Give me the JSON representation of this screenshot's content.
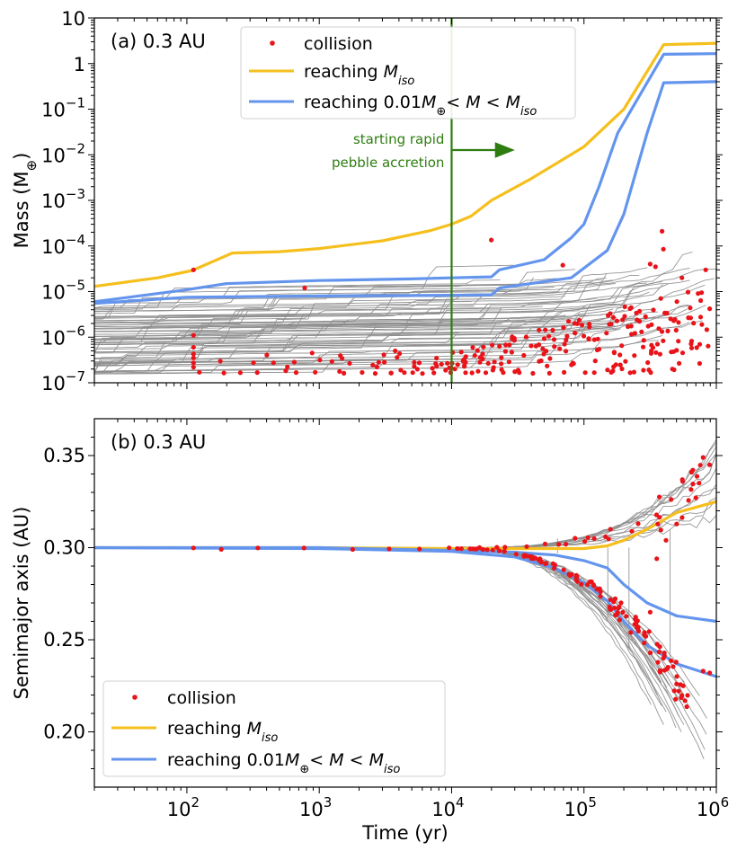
{
  "figure": {
    "xlabel": "Time (yr)",
    "colors": {
      "yellow": "#f5bf1d",
      "blue": "#6495ed",
      "grey": "#8c8c8c",
      "red": "#e8141a",
      "green": "#2e7d10"
    }
  },
  "chart_data": [
    {
      "type": "line",
      "panel": "a",
      "title": "(a) 0.3 AU",
      "ylabel_main": "Mass (M",
      "ylabel_symbol": "⊕",
      "ylabel_close": ")",
      "xscale": "log",
      "yscale": "log",
      "xlim": [
        20,
        1000000
      ],
      "ylim": [
        1e-07,
        10
      ],
      "x_ticks": [
        {
          "value": 100,
          "base": "10",
          "exp": "2"
        },
        {
          "value": 1000,
          "base": "10",
          "exp": "3"
        },
        {
          "value": 10000,
          "base": "10",
          "exp": "4"
        },
        {
          "value": 100000,
          "base": "10",
          "exp": "5"
        },
        {
          "value": 1000000,
          "base": "10",
          "exp": "6"
        }
      ],
      "y_ticks": [
        {
          "value": 1e-07,
          "base": "10",
          "exp": "−7"
        },
        {
          "value": 1e-06,
          "base": "10",
          "exp": "−6"
        },
        {
          "value": 1e-05,
          "base": "10",
          "exp": "−5"
        },
        {
          "value": 0.0001,
          "base": "10",
          "exp": "−4"
        },
        {
          "value": 0.001,
          "base": "10",
          "exp": "−3"
        },
        {
          "value": 0.01,
          "base": "10",
          "exp": "−2"
        },
        {
          "value": 0.1,
          "base": "10",
          "exp": "−1"
        },
        {
          "value": 1,
          "base": "1",
          "exp": ""
        },
        {
          "value": 10,
          "base": "10",
          "exp": ""
        }
      ],
      "vline": {
        "x": 10000,
        "text_line1": "starting rapid",
        "text_line2": "pebble accretion",
        "arrow_to_x": 28000
      },
      "series": [
        {
          "name": "reaching M_iso",
          "color": "#f5bf1d",
          "points": [
            [
              20,
              1.3e-05
            ],
            [
              60,
              2e-05
            ],
            [
              110,
              2.9e-05
            ],
            [
              220,
              7e-05
            ],
            [
              500,
              7.5e-05
            ],
            [
              1000,
              8.8e-05
            ],
            [
              3000,
              0.00013
            ],
            [
              7000,
              0.00022
            ],
            [
              10000,
              0.0003
            ],
            [
              14000,
              0.00045
            ],
            [
              20000,
              0.001
            ],
            [
              40000,
              0.003
            ],
            [
              100000,
              0.015
            ],
            [
              200000,
              0.1
            ],
            [
              400000,
              2.6
            ],
            [
              1000000,
              2.8
            ]
          ]
        },
        {
          "name": "reaching 0.01M⊕< M < M_iso",
          "color": "#6495ed",
          "points": [
            [
              20,
              6e-06
            ],
            [
              100,
              1.1e-05
            ],
            [
              200,
              1.5e-05
            ],
            [
              1000,
              1.75e-05
            ],
            [
              5000,
              1.9e-05
            ],
            [
              10000,
              2e-05
            ],
            [
              20000,
              2.1e-05
            ],
            [
              23000,
              3e-05
            ],
            [
              50000,
              5e-05
            ],
            [
              80000,
              0.00015
            ],
            [
              100000,
              0.0003
            ],
            [
              130000,
              0.002
            ],
            [
              180000,
              0.03
            ],
            [
              400000,
              1.6
            ],
            [
              1000000,
              1.65
            ]
          ]
        },
        {
          "name": "reaching 0.01M⊕< M < M_iso (2)",
          "color": "#6495ed",
          "points": [
            [
              20,
              5.5e-06
            ],
            [
              100,
              7.5e-06
            ],
            [
              1000,
              8e-06
            ],
            [
              10000,
              8.3e-06
            ],
            [
              20000,
              8.5e-06
            ],
            [
              23000,
              1.2e-05
            ],
            [
              80000,
              2e-05
            ],
            [
              150000,
              8e-05
            ],
            [
              200000,
              0.0005
            ],
            [
              300000,
              0.03
            ],
            [
              400000,
              0.38
            ],
            [
              1000000,
              0.4
            ]
          ]
        }
      ],
      "legend": {
        "location": "upper center",
        "entries": [
          {
            "type": "marker",
            "color": "#e8141a",
            "text": "collision"
          },
          {
            "type": "line",
            "color": "#f5bf1d",
            "text_plain": "reaching ",
            "text_math": "M",
            "text_sub": "iso"
          },
          {
            "type": "line",
            "color": "#6495ed",
            "text_plain": "reaching 0.01",
            "text_math": "M",
            "text_sub": "⊕",
            "text_rest": "< ",
            "text_math2": "M",
            "text_rest2": " < ",
            "text_math3": "M",
            "text_sub3": "iso"
          }
        ]
      },
      "collision_markers": "scattered red dots along grey embryo tracks, concentrated between 1e-7 and 1e-5 M⊕, dense after 1e4 yr"
    },
    {
      "type": "line",
      "panel": "b",
      "title": "(b) 0.3 AU",
      "ylabel": "Semimajor axis (AU)",
      "xscale": "log",
      "yscale": "linear",
      "xlim": [
        20,
        1000000
      ],
      "ylim": [
        0.17,
        0.37
      ],
      "x_ticks": [
        {
          "value": 100,
          "base": "10",
          "exp": "2"
        },
        {
          "value": 1000,
          "base": "10",
          "exp": "3"
        },
        {
          "value": 10000,
          "base": "10",
          "exp": "4"
        },
        {
          "value": 100000,
          "base": "10",
          "exp": "5"
        },
        {
          "value": 1000000,
          "base": "10",
          "exp": "6"
        }
      ],
      "y_ticks": [
        {
          "value": 0.2,
          "label": "0.20"
        },
        {
          "value": 0.25,
          "label": "0.25"
        },
        {
          "value": 0.3,
          "label": "0.30"
        },
        {
          "value": 0.35,
          "label": "0.35"
        }
      ],
      "series": [
        {
          "name": "reaching M_iso",
          "color": "#f5bf1d",
          "points": [
            [
              20,
              0.3
            ],
            [
              1000,
              0.3
            ],
            [
              10000,
              0.2995
            ],
            [
              50000,
              0.2995
            ],
            [
              100000,
              0.2995
            ],
            [
              150000,
              0.301
            ],
            [
              200000,
              0.304
            ],
            [
              300000,
              0.31
            ],
            [
              500000,
              0.319
            ],
            [
              1000000,
              0.325
            ]
          ]
        },
        {
          "name": "reaching 0.01M⊕< M < M_iso",
          "color": "#6495ed",
          "points": [
            [
              20,
              0.3
            ],
            [
              1000,
              0.3
            ],
            [
              10000,
              0.2985
            ],
            [
              30000,
              0.2975
            ],
            [
              60000,
              0.296
            ],
            [
              100000,
              0.293
            ],
            [
              150000,
              0.289
            ],
            [
              200000,
              0.28
            ],
            [
              300000,
              0.27
            ],
            [
              500000,
              0.263
            ],
            [
              1000000,
              0.26
            ]
          ]
        },
        {
          "name": "reaching 0.01M⊕< M < M_iso (2)",
          "color": "#6495ed",
          "points": [
            [
              20,
              0.3
            ],
            [
              1000,
              0.2995
            ],
            [
              10000,
              0.298
            ],
            [
              30000,
              0.295
            ],
            [
              60000,
              0.289
            ],
            [
              100000,
              0.281
            ],
            [
              150000,
              0.271
            ],
            [
              200000,
              0.26
            ],
            [
              300000,
              0.247
            ],
            [
              500000,
              0.237
            ],
            [
              1000000,
              0.23
            ]
          ]
        }
      ],
      "legend": {
        "location": "lower left",
        "entries": [
          {
            "type": "marker",
            "color": "#e8141a",
            "text": "collision"
          },
          {
            "type": "line",
            "color": "#f5bf1d",
            "text_plain": "reaching ",
            "text_math": "M",
            "text_sub": "iso"
          },
          {
            "type": "line",
            "color": "#6495ed",
            "text_plain": "reaching 0.01",
            "text_math": "M",
            "text_sub": "⊕",
            "text_rest": "< ",
            "text_math2": "M",
            "text_rest2": " < ",
            "text_math3": "M",
            "text_sub3": "iso"
          }
        ]
      }
    }
  ]
}
